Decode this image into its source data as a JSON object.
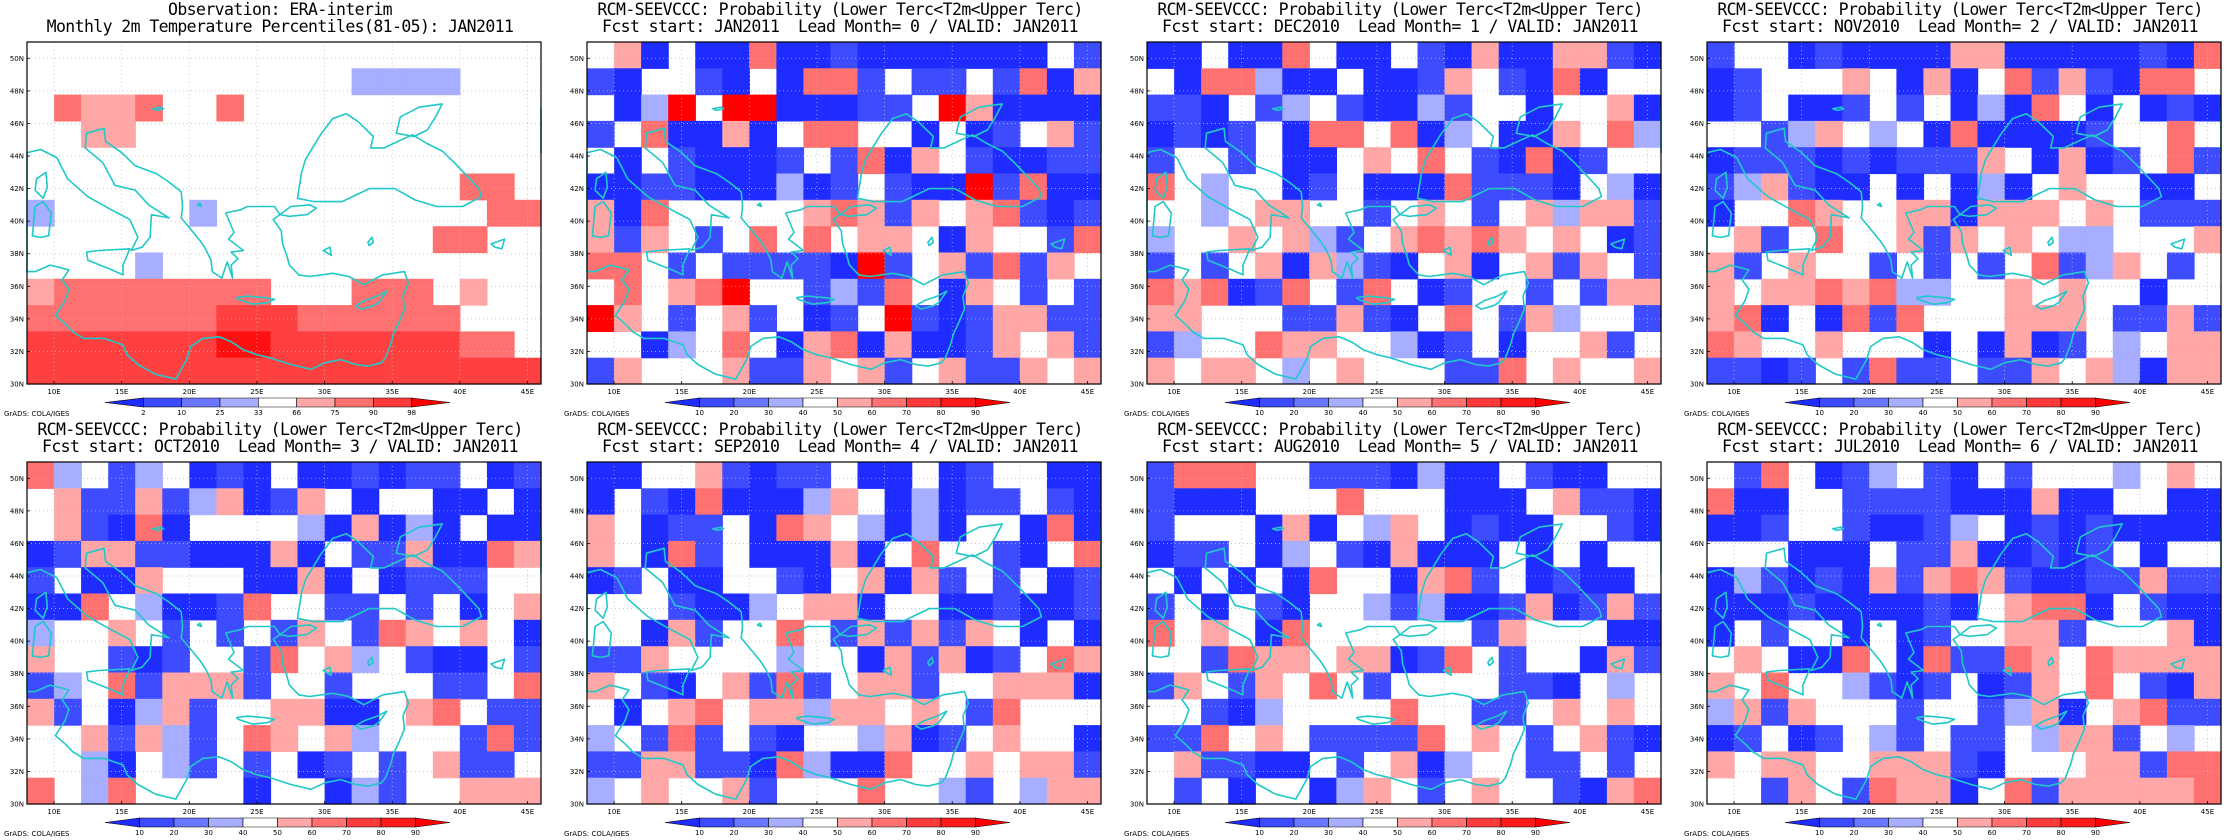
{
  "colors": {
    "coast": "#20c8c8",
    "frame": "#000000",
    "grid": "#bdbdbd",
    "background": "#ffffff"
  },
  "map": {
    "lon_ticks": [
      "10E",
      "15E",
      "20E",
      "25E",
      "30E",
      "35E",
      "40E",
      "45E"
    ],
    "lat_ticks": [
      "30N",
      "32N",
      "34N",
      "36N",
      "38N",
      "40N",
      "42N",
      "44N",
      "46N",
      "48N",
      "50N"
    ],
    "lon_range": [
      8,
      46
    ],
    "lat_range": [
      30,
      51
    ],
    "grid_lines": "dotted"
  },
  "credit": "GrADS: COLA/IGES",
  "panels": [
    {
      "title1": "Observation: ERA-interim",
      "title2": "Monthly 2m Temperature Percentiles(81-05): JAN2011",
      "colorbar": {
        "labels": [
          "2",
          "10",
          "25",
          "33",
          "66",
          "75",
          "90",
          "98"
        ],
        "colors": [
          "#1e2cff",
          "#3c4bff",
          "#6a76ff",
          "#a7adff",
          "#ffffff",
          "#ffa7a7",
          "#ff7070",
          "#ff3a3a",
          "#ff0000"
        ]
      },
      "grid": [
        "0000000000000000000",
        "000000000000----000",
        "06556006000000000000",
        "0055000000000000000",
        "0000000000000000000",
        "0000000000000000660",
        "-00000-0000000000660",
        "000000000000000660",
        "0000-0000000000000",
        "5666666660006660500",
        "6666666777666666000",
        "7777777887777777660",
        "7777777777777777777"
      ]
    },
    {
      "title1": "RCM-SEEVCCC: Probability (Lower Terc<T2m<Upper Terc)",
      "title2": "Fcst start: JAN2011  Lead Month= 0 / VALID: JAN2011",
      "colorbar": {
        "labels": [
          "10",
          "20",
          "30",
          "40",
          "50",
          "60",
          "70",
          "80",
          "90"
        ],
        "colors": [
          "#1e2cff",
          "#3c4bff",
          "#6a76ff",
          "#a7adff",
          "#ffffff",
          "#ffa7a7",
          "#ff7070",
          "#ff3a3a",
          "#ff1a1a",
          "#ff0000"
        ]
      }
    },
    {
      "title1": "RCM-SEEVCCC: Probability (Lower Terc<T2m<Upper Terc)",
      "title2": "Fcst start: DEC2010  Lead Month= 1 / VALID: JAN2011",
      "colorbar": {
        "labels": [
          "10",
          "20",
          "30",
          "40",
          "50",
          "60",
          "70",
          "80",
          "90"
        ],
        "colors": [
          "#1e2cff",
          "#3c4bff",
          "#6a76ff",
          "#a7adff",
          "#ffffff",
          "#ffa7a7",
          "#ff7070",
          "#ff3a3a",
          "#ff1a1a",
          "#ff0000"
        ]
      }
    },
    {
      "title1": "RCM-SEEVCCC: Probability (Lower Terc<T2m<Upper Terc)",
      "title2": "Fcst start: NOV2010  Lead Month= 2 / VALID: JAN2011",
      "colorbar": {
        "labels": [
          "10",
          "20",
          "30",
          "40",
          "50",
          "60",
          "70",
          "80",
          "90"
        ],
        "colors": [
          "#1e2cff",
          "#3c4bff",
          "#6a76ff",
          "#a7adff",
          "#ffffff",
          "#ffa7a7",
          "#ff7070",
          "#ff3a3a",
          "#ff1a1a",
          "#ff0000"
        ]
      }
    },
    {
      "title1": "RCM-SEEVCCC: Probability (Lower Terc<T2m<Upper Terc)",
      "title2": "Fcst start: OCT2010  Lead Month= 3 / VALID: JAN2011",
      "colorbar": {
        "labels": [
          "10",
          "20",
          "30",
          "40",
          "50",
          "60",
          "70",
          "80",
          "90"
        ],
        "colors": [
          "#1e2cff",
          "#3c4bff",
          "#6a76ff",
          "#a7adff",
          "#ffffff",
          "#ffa7a7",
          "#ff7070",
          "#ff3a3a",
          "#ff1a1a",
          "#ff0000"
        ]
      }
    },
    {
      "title1": "RCM-SEEVCCC: Probability (Lower Terc<T2m<Upper Terc)",
      "title2": "Fcst start: SEP2010  Lead Month= 4 / VALID: JAN2011",
      "colorbar": {
        "labels": [
          "10",
          "20",
          "30",
          "40",
          "50",
          "60",
          "70",
          "80",
          "90"
        ],
        "colors": [
          "#1e2cff",
          "#3c4bff",
          "#6a76ff",
          "#a7adff",
          "#ffffff",
          "#ffa7a7",
          "#ff7070",
          "#ff3a3a",
          "#ff1a1a",
          "#ff0000"
        ]
      }
    },
    {
      "title1": "RCM-SEEVCCC: Probability (Lower Terc<T2m<Upper Terc)",
      "title2": "Fcst start: AUG2010  Lead Month= 5 / VALID: JAN2011",
      "colorbar": {
        "labels": [
          "10",
          "20",
          "30",
          "40",
          "50",
          "60",
          "70",
          "80",
          "90"
        ],
        "colors": [
          "#1e2cff",
          "#3c4bff",
          "#6a76ff",
          "#a7adff",
          "#ffffff",
          "#ffa7a7",
          "#ff7070",
          "#ff3a3a",
          "#ff1a1a",
          "#ff0000"
        ]
      }
    },
    {
      "title1": "RCM-SEEVCCC: Probability (Lower Terc<T2m<Upper Terc)",
      "title2": "Fcst start: JUL2010  Lead Month= 6 / VALID: JAN2011",
      "colorbar": {
        "labels": [
          "10",
          "20",
          "30",
          "40",
          "50",
          "60",
          "70",
          "80",
          "90"
        ],
        "colors": [
          "#1e2cff",
          "#3c4bff",
          "#6a76ff",
          "#a7adff",
          "#ffffff",
          "#ffa7a7",
          "#ff7070",
          "#ff3a3a",
          "#ff1a1a",
          "#ff0000"
        ]
      }
    }
  ]
}
